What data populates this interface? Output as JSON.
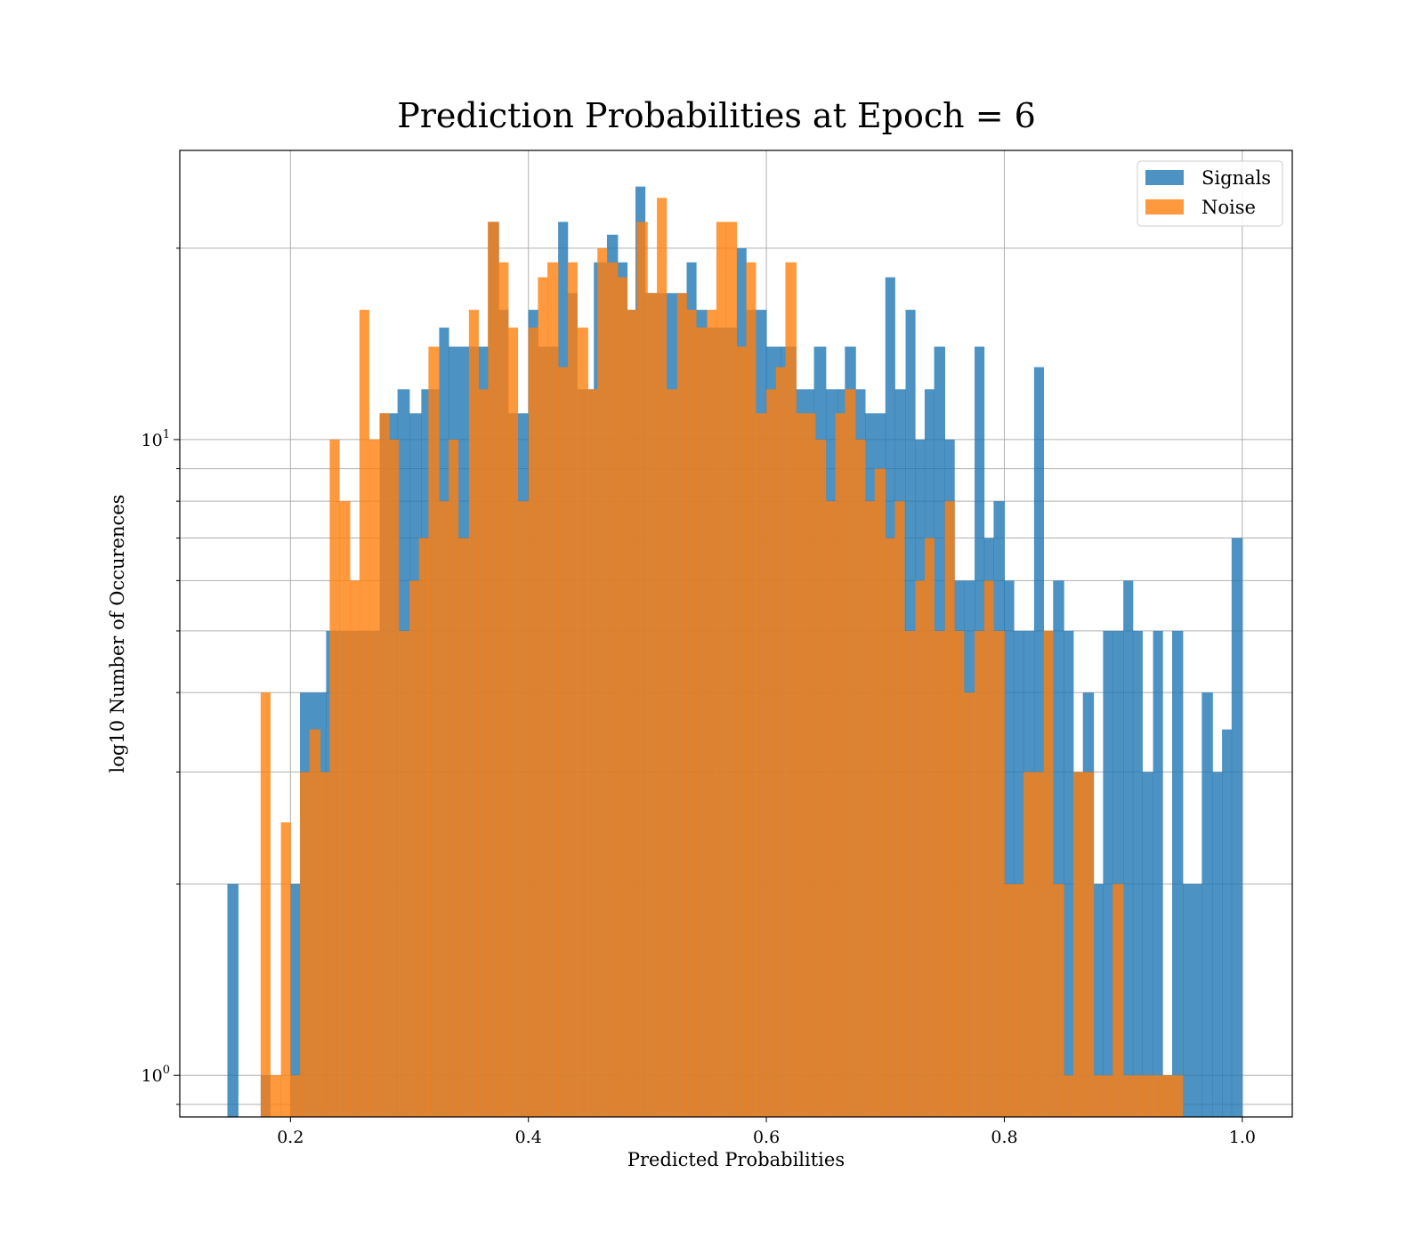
{
  "chart_data": {
    "type": "bar",
    "title": "Prediction Probabilities at Epoch = 6",
    "xlabel": "Predicted Probabilities",
    "ylabel": "log10 Number of Occurences",
    "xlim": [
      0.107,
      1.042
    ],
    "ylim": [
      0.86,
      28.5
    ],
    "yscale": "log",
    "grid": true,
    "legend_position": "top-right",
    "x_ticks": [
      0.2,
      0.4,
      0.6,
      0.8,
      1.0
    ],
    "x_tick_labels": [
      "0.2",
      "0.4",
      "0.6",
      "0.8",
      "1.0"
    ],
    "y_major_ticks": [
      {
        "value": 1,
        "base": "10",
        "exp": "0"
      },
      {
        "value": 10,
        "base": "10",
        "exp": "1"
      }
    ],
    "y_minor_ticks": [
      0.9,
      2,
      3,
      4,
      5,
      6,
      7,
      8,
      9,
      20
    ],
    "colors": {
      "signals": "#1f77b4",
      "noise": "#ff7f0e"
    },
    "series": [
      {
        "name": "Signals",
        "color": "#1f77b4",
        "opacity": 0.8,
        "bins": [
          [
            0.147,
            0.156,
            2
          ],
          [
            0.175,
            0.183,
            1
          ],
          [
            0.2,
            0.208,
            2
          ],
          [
            0.208,
            0.23,
            4
          ],
          [
            0.23,
            0.275,
            5
          ],
          [
            0.275,
            0.29,
            11
          ],
          [
            0.29,
            0.3,
            12
          ],
          [
            0.3,
            0.31,
            11
          ],
          [
            0.31,
            0.325,
            12
          ],
          [
            0.325,
            0.333,
            15
          ],
          [
            0.333,
            0.366,
            14
          ],
          [
            0.366,
            0.375,
            22
          ],
          [
            0.375,
            0.383,
            16
          ],
          [
            0.383,
            0.4,
            11
          ],
          [
            0.4,
            0.408,
            16
          ],
          [
            0.408,
            0.425,
            14
          ],
          [
            0.425,
            0.433,
            22
          ],
          [
            0.433,
            0.441,
            17
          ],
          [
            0.441,
            0.455,
            12
          ],
          [
            0.455,
            0.466,
            19
          ],
          [
            0.466,
            0.475,
            21
          ],
          [
            0.475,
            0.483,
            19
          ],
          [
            0.483,
            0.49,
            16
          ],
          [
            0.49,
            0.498,
            25
          ],
          [
            0.498,
            0.533,
            17
          ],
          [
            0.533,
            0.541,
            19
          ],
          [
            0.541,
            0.55,
            16
          ],
          [
            0.55,
            0.575,
            15
          ],
          [
            0.575,
            0.583,
            20
          ],
          [
            0.583,
            0.6,
            16
          ],
          [
            0.6,
            0.612,
            14
          ],
          [
            0.612,
            0.625,
            14
          ],
          [
            0.625,
            0.64,
            12
          ],
          [
            0.64,
            0.65,
            14
          ],
          [
            0.65,
            0.66,
            12
          ],
          [
            0.66,
            0.666,
            12
          ],
          [
            0.666,
            0.675,
            14
          ],
          [
            0.675,
            0.683,
            12
          ],
          [
            0.683,
            0.7,
            11
          ],
          [
            0.7,
            0.708,
            18
          ],
          [
            0.708,
            0.717,
            12
          ],
          [
            0.717,
            0.725,
            16
          ],
          [
            0.725,
            0.733,
            10
          ],
          [
            0.733,
            0.741,
            12
          ],
          [
            0.741,
            0.75,
            14
          ],
          [
            0.75,
            0.758,
            10
          ],
          [
            0.758,
            0.766,
            6
          ],
          [
            0.766,
            0.775,
            6
          ],
          [
            0.775,
            0.783,
            14
          ],
          [
            0.783,
            0.791,
            7
          ],
          [
            0.791,
            0.8,
            8
          ],
          [
            0.8,
            0.808,
            6
          ],
          [
            0.808,
            0.816,
            5
          ],
          [
            0.816,
            0.825,
            5
          ],
          [
            0.825,
            0.833,
            13
          ],
          [
            0.833,
            0.841,
            5
          ],
          [
            0.841,
            0.85,
            6
          ],
          [
            0.85,
            0.858,
            5
          ],
          [
            0.858,
            0.866,
            3
          ],
          [
            0.866,
            0.875,
            4
          ],
          [
            0.875,
            0.883,
            2
          ],
          [
            0.883,
            0.891,
            5
          ],
          [
            0.891,
            0.9,
            5
          ],
          [
            0.9,
            0.908,
            6
          ],
          [
            0.908,
            0.916,
            5
          ],
          [
            0.916,
            0.925,
            3
          ],
          [
            0.925,
            0.933,
            5
          ],
          [
            0.933,
            0.941,
            1
          ],
          [
            0.941,
            0.95,
            5
          ],
          [
            0.95,
            0.966,
            2
          ],
          [
            0.966,
            0.975,
            4
          ],
          [
            0.975,
            0.983,
            3
          ],
          [
            0.983,
            0.991,
            3.5
          ],
          [
            0.991,
            1.0,
            7
          ]
        ]
      },
      {
        "name": "Noise",
        "color": "#ff7f0e",
        "opacity": 0.8,
        "bins": [
          [
            0.175,
            0.183,
            4
          ],
          [
            0.183,
            0.192,
            1
          ],
          [
            0.192,
            0.2,
            2.5
          ],
          [
            0.2,
            0.208,
            1
          ],
          [
            0.208,
            0.216,
            3
          ],
          [
            0.216,
            0.225,
            3.5
          ],
          [
            0.225,
            0.233,
            3
          ],
          [
            0.233,
            0.241,
            10
          ],
          [
            0.241,
            0.25,
            8
          ],
          [
            0.25,
            0.258,
            6
          ],
          [
            0.258,
            0.266,
            16
          ],
          [
            0.266,
            0.275,
            10
          ],
          [
            0.275,
            0.283,
            11
          ],
          [
            0.283,
            0.291,
            10
          ],
          [
            0.291,
            0.3,
            5
          ],
          [
            0.3,
            0.308,
            6
          ],
          [
            0.308,
            0.316,
            7
          ],
          [
            0.316,
            0.325,
            14
          ],
          [
            0.325,
            0.333,
            8
          ],
          [
            0.333,
            0.341,
            10
          ],
          [
            0.341,
            0.35,
            7
          ],
          [
            0.35,
            0.358,
            16
          ],
          [
            0.358,
            0.366,
            12
          ],
          [
            0.366,
            0.375,
            22
          ],
          [
            0.375,
            0.383,
            19
          ],
          [
            0.383,
            0.391,
            15
          ],
          [
            0.391,
            0.4,
            8
          ],
          [
            0.4,
            0.408,
            15
          ],
          [
            0.408,
            0.416,
            18
          ],
          [
            0.416,
            0.425,
            19
          ],
          [
            0.425,
            0.433,
            13
          ],
          [
            0.433,
            0.441,
            19
          ],
          [
            0.441,
            0.45,
            15
          ],
          [
            0.45,
            0.458,
            12
          ],
          [
            0.458,
            0.466,
            20
          ],
          [
            0.466,
            0.475,
            19
          ],
          [
            0.475,
            0.483,
            18
          ],
          [
            0.483,
            0.491,
            16
          ],
          [
            0.491,
            0.5,
            22
          ],
          [
            0.5,
            0.508,
            17
          ],
          [
            0.508,
            0.516,
            24
          ],
          [
            0.516,
            0.525,
            12
          ],
          [
            0.525,
            0.533,
            17
          ],
          [
            0.533,
            0.541,
            16
          ],
          [
            0.541,
            0.55,
            15
          ],
          [
            0.55,
            0.558,
            16
          ],
          [
            0.558,
            0.566,
            22
          ],
          [
            0.566,
            0.575,
            22
          ],
          [
            0.575,
            0.583,
            14
          ],
          [
            0.583,
            0.591,
            19
          ],
          [
            0.591,
            0.6,
            11
          ],
          [
            0.6,
            0.608,
            12
          ],
          [
            0.608,
            0.616,
            13
          ],
          [
            0.616,
            0.625,
            19
          ],
          [
            0.625,
            0.633,
            11
          ],
          [
            0.633,
            0.641,
            11
          ],
          [
            0.641,
            0.65,
            10
          ],
          [
            0.65,
            0.658,
            8
          ],
          [
            0.658,
            0.666,
            11
          ],
          [
            0.666,
            0.675,
            12
          ],
          [
            0.675,
            0.683,
            10
          ],
          [
            0.683,
            0.691,
            8
          ],
          [
            0.691,
            0.7,
            9
          ],
          [
            0.7,
            0.708,
            7
          ],
          [
            0.708,
            0.716,
            8
          ],
          [
            0.716,
            0.725,
            5
          ],
          [
            0.725,
            0.733,
            6
          ],
          [
            0.733,
            0.741,
            7
          ],
          [
            0.741,
            0.75,
            5
          ],
          [
            0.75,
            0.758,
            8
          ],
          [
            0.758,
            0.766,
            5
          ],
          [
            0.766,
            0.775,
            4
          ],
          [
            0.775,
            0.783,
            5
          ],
          [
            0.783,
            0.791,
            6
          ],
          [
            0.791,
            0.8,
            5
          ],
          [
            0.8,
            0.808,
            2
          ],
          [
            0.808,
            0.816,
            2
          ],
          [
            0.816,
            0.825,
            3
          ],
          [
            0.825,
            0.833,
            3
          ],
          [
            0.833,
            0.841,
            5
          ],
          [
            0.841,
            0.85,
            2
          ],
          [
            0.85,
            0.858,
            1
          ],
          [
            0.858,
            0.866,
            3
          ],
          [
            0.866,
            0.875,
            3
          ],
          [
            0.875,
            0.883,
            1
          ],
          [
            0.883,
            0.891,
            1
          ],
          [
            0.891,
            0.9,
            2
          ],
          [
            0.9,
            0.908,
            1
          ],
          [
            0.908,
            0.916,
            1
          ],
          [
            0.916,
            0.925,
            1
          ],
          [
            0.925,
            0.933,
            1
          ],
          [
            0.933,
            0.941,
            1
          ],
          [
            0.941,
            0.95,
            1
          ]
        ]
      }
    ]
  }
}
